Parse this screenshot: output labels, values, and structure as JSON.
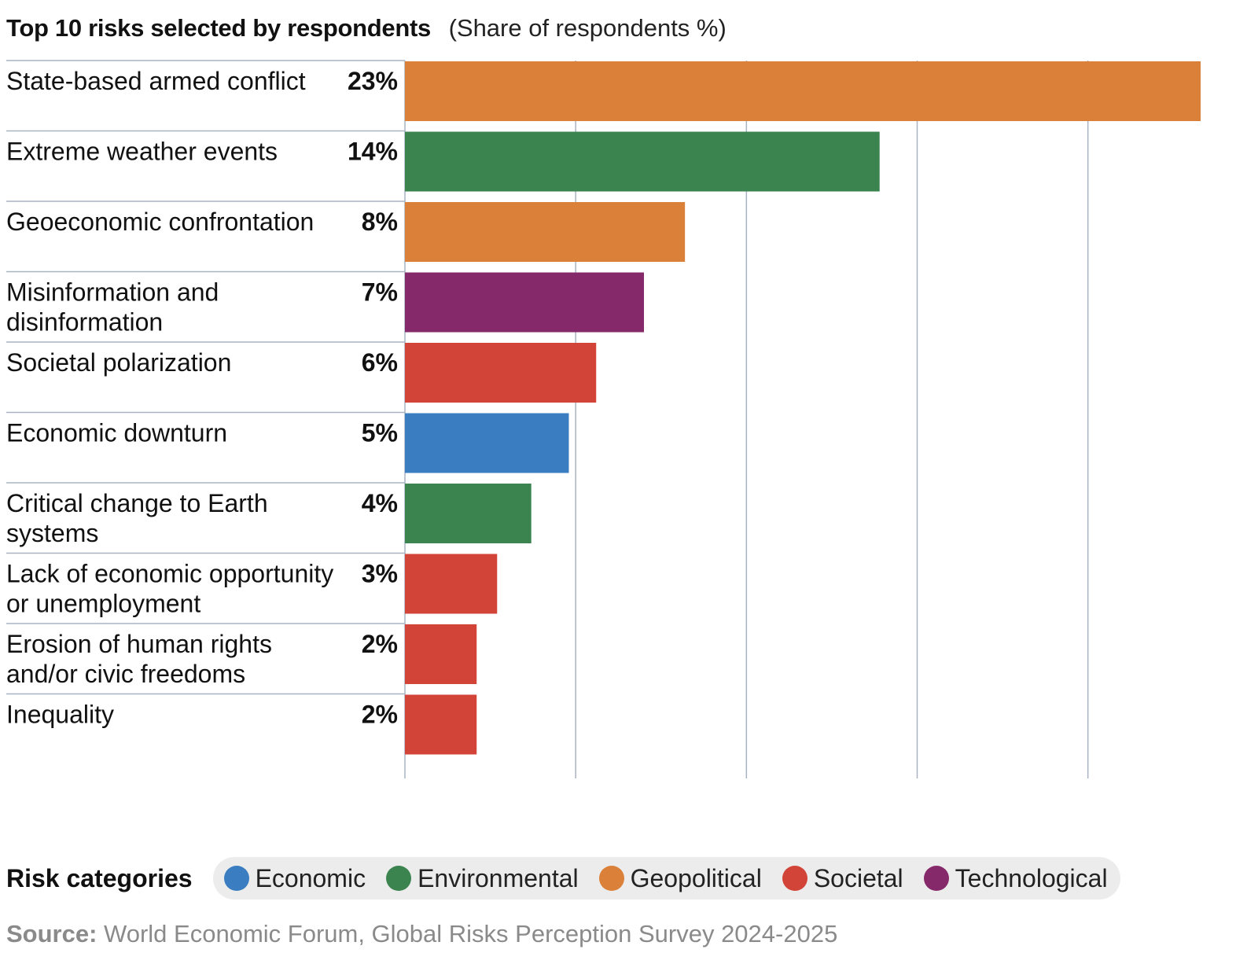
{
  "chart_data": {
    "type": "bar",
    "orientation": "horizontal",
    "title": "Top 10 risks selected by respondents",
    "subtitle": "(Share of respondents %)",
    "categories": [
      "State-based armed conflict",
      "Extreme weather events",
      "Geoeconomic confrontation",
      "Misinformation and disinformation",
      "Societal polarization",
      "Economic downturn",
      "Critical change to Earth systems",
      "Lack of economic opportunity or unemployment",
      "Erosion of human rights and/or civic freedoms",
      "Inequality"
    ],
    "category_lines": [
      [
        "State-based armed conflict"
      ],
      [
        "Extreme weather events"
      ],
      [
        "Geoeconomic confrontation"
      ],
      [
        "Misinformation and",
        "disinformation"
      ],
      [
        "Societal polarization"
      ],
      [
        "Economic downturn"
      ],
      [
        "Critical change to Earth",
        "systems"
      ],
      [
        "Lack of economic opportunity",
        "or unemployment"
      ],
      [
        "Erosion of human rights",
        "and/or civic freedoms"
      ],
      [
        "Inequality"
      ]
    ],
    "values": [
      23.3,
      13.9,
      8.2,
      7.0,
      5.6,
      4.8,
      3.7,
      2.7,
      2.1,
      2.1
    ],
    "value_labels": [
      "23%",
      "14%",
      "8%",
      "7%",
      "6%",
      "5%",
      "4%",
      "3%",
      "2%",
      "2%"
    ],
    "bar_categories": [
      "Geopolitical",
      "Environmental",
      "Geopolitical",
      "Technological",
      "Societal",
      "Economic",
      "Environmental",
      "Societal",
      "Societal",
      "Societal"
    ],
    "xlim": [
      0,
      23.3
    ],
    "x_gridlines": [
      5,
      10,
      15,
      20
    ],
    "grid": true,
    "legend_position": "bottom-left"
  },
  "legend": {
    "title": "Risk categories",
    "items": [
      {
        "name": "Economic",
        "color": "#3a7dc1"
      },
      {
        "name": "Environmental",
        "color": "#3b8450"
      },
      {
        "name": "Geopolitical",
        "color": "#da8038"
      },
      {
        "name": "Societal",
        "color": "#d24437"
      },
      {
        "name": "Technological",
        "color": "#86296b"
      }
    ]
  },
  "source": {
    "label": "Source:",
    "text": " World Economic Forum, Global Risks Perception Survey 2024-2025"
  }
}
